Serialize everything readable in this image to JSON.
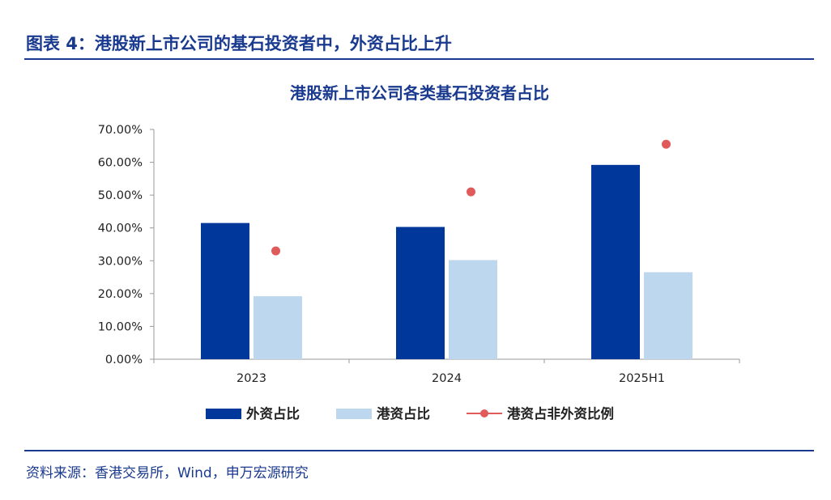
{
  "figure_title": "图表 4：港股新上市公司的基石投资者中，外资占比上升",
  "source": "资料来源：香港交易所，Wind，申万宏源研究",
  "colors": {
    "title": "#1a3a8f",
    "foreign": "#00379a",
    "hk": "#bdd7ee",
    "ratio": "#e05a5a",
    "axis": "#999999"
  },
  "chart_data": {
    "type": "bar",
    "title": "港股新上市公司各类基石投资者占比",
    "categories": [
      "2023",
      "2024",
      "2025H1"
    ],
    "series": [
      {
        "name": "外资占比",
        "kind": "bar",
        "values": [
          41.5,
          40.3,
          59.2
        ]
      },
      {
        "name": "港资占比",
        "kind": "bar",
        "values": [
          19.2,
          30.2,
          26.5
        ]
      },
      {
        "name": "港资占非外资比例",
        "kind": "scatter",
        "values": [
          33.0,
          51.0,
          65.5
        ]
      }
    ],
    "ylim": [
      0,
      70
    ],
    "yticks": [
      "0.00%",
      "10.00%",
      "20.00%",
      "30.00%",
      "40.00%",
      "50.00%",
      "60.00%",
      "70.00%"
    ],
    "legend_position": "bottom",
    "grid": false
  }
}
